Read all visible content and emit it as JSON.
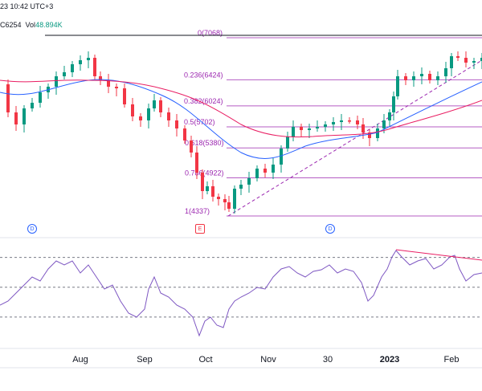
{
  "header": {
    "timestamp": "23 10:42 UTC+3",
    "close": "C6254",
    "volume_label": "Vol",
    "volume": "48.894K"
  },
  "colors": {
    "up": "#089981",
    "down": "#f23645",
    "fib": "#9c27b0",
    "ma_fast": "#2962ff",
    "ma_slow": "#e91e63",
    "rsi": "#7e57c2",
    "trend": "#9c27b0"
  },
  "markers": [
    {
      "label": "D",
      "kind": "dividend"
    },
    {
      "label": "E",
      "kind": "earnings"
    },
    {
      "label": "D",
      "kind": "dividend"
    }
  ],
  "chart_data": {
    "type": "candlestick",
    "price_range": [
      4150,
      7200
    ],
    "fib_levels": [
      {
        "label": "0(7068)",
        "value": 7068
      },
      {
        "label": "0.236(6424)",
        "value": 6424
      },
      {
        "label": "0.382(6024)",
        "value": 6024
      },
      {
        "label": "0.5(5702)",
        "value": 5702
      },
      {
        "label": "0.618(5380)",
        "value": 5380
      },
      {
        "label": "0.786(4922)",
        "value": 4922
      },
      {
        "label": "1(4337)",
        "value": 4337
      }
    ],
    "resistance_value": 7068,
    "rsi_levels": [
      70,
      50,
      30
    ],
    "x_axis_labels": [
      "Aug",
      "Sep",
      "Oct",
      "Nov",
      "30",
      "2023",
      "Feb"
    ]
  }
}
